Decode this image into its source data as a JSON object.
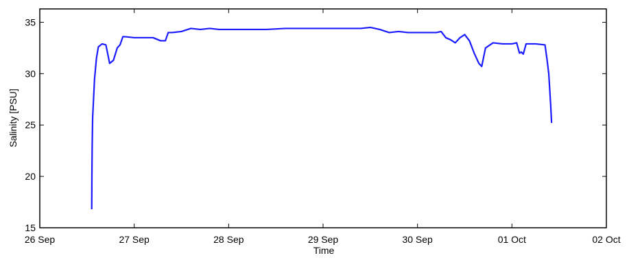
{
  "chart_data": {
    "type": "line",
    "xlabel": "Time",
    "ylabel": "Salinity [PSU]",
    "x": [
      0.55,
      0.552,
      0.555,
      0.56,
      0.58,
      0.6,
      0.62,
      0.66,
      0.7,
      0.74,
      0.78,
      0.82,
      0.85,
      0.88,
      0.9,
      1.0,
      1.1,
      1.2,
      1.28,
      1.33,
      1.36,
      1.4,
      1.5,
      1.6,
      1.7,
      1.8,
      1.9,
      2.0,
      2.1,
      2.2,
      2.4,
      2.6,
      2.8,
      3.0,
      3.2,
      3.4,
      3.5,
      3.55,
      3.6,
      3.7,
      3.8,
      3.9,
      4.0,
      4.1,
      4.2,
      4.25,
      4.3,
      4.35,
      4.4,
      4.45,
      4.5,
      4.55,
      4.6,
      4.65,
      4.68,
      4.72,
      4.8,
      4.9,
      5.0,
      5.05,
      5.08,
      5.1,
      5.12,
      5.15,
      5.25,
      5.35,
      5.37,
      5.39,
      5.41,
      5.42
    ],
    "series": [
      {
        "name": "Salinity",
        "color": "#1a1aff",
        "values": [
          16.8,
          20.0,
          23.0,
          25.8,
          29.5,
          31.5,
          32.6,
          32.9,
          32.8,
          31.0,
          31.3,
          32.5,
          32.8,
          33.6,
          33.6,
          33.5,
          33.5,
          33.5,
          33.2,
          33.2,
          34.0,
          34.0,
          34.1,
          34.4,
          34.3,
          34.4,
          34.3,
          34.3,
          34.3,
          34.3,
          34.3,
          34.4,
          34.4,
          34.4,
          34.4,
          34.4,
          34.5,
          34.4,
          34.3,
          34.0,
          34.1,
          34.0,
          34.0,
          34.0,
          34.0,
          34.1,
          33.5,
          33.3,
          33.0,
          33.5,
          33.8,
          33.2,
          32.0,
          31.0,
          30.7,
          32.5,
          33.0,
          32.9,
          32.9,
          33.0,
          32.0,
          32.1,
          31.9,
          32.9,
          32.9,
          32.8,
          31.5,
          30.0,
          27.0,
          25.2
        ]
      }
    ],
    "xlim": [
      0,
      6
    ],
    "xticks": [
      {
        "value": 0,
        "label": "26 Sep"
      },
      {
        "value": 1,
        "label": "27 Sep"
      },
      {
        "value": 2,
        "label": "28 Sep"
      },
      {
        "value": 3,
        "label": "29 Sep"
      },
      {
        "value": 4,
        "label": "30 Sep"
      },
      {
        "value": 5,
        "label": "01 Oct"
      },
      {
        "value": 6,
        "label": "02 Oct"
      }
    ],
    "ylim": [
      15,
      36.3
    ],
    "yticks": [
      15,
      20,
      25,
      30,
      35
    ],
    "grid": false
  }
}
